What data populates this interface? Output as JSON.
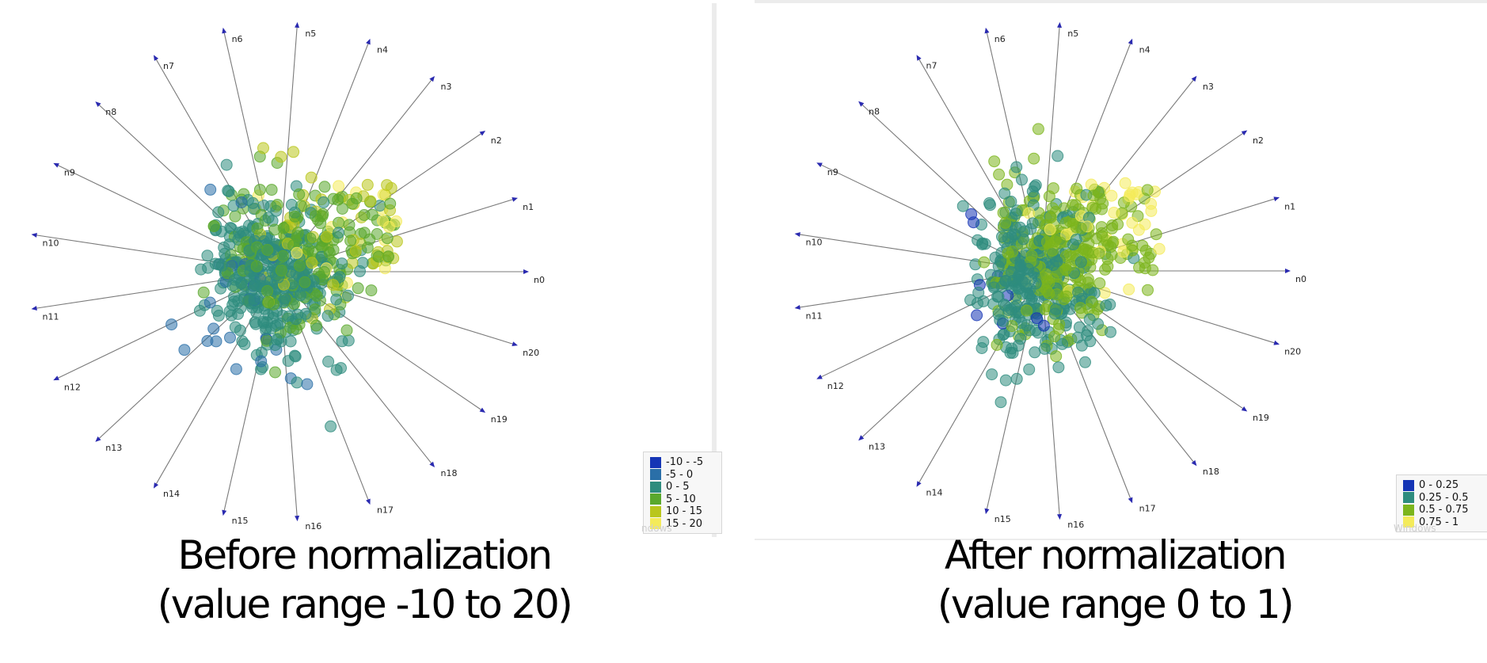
{
  "chart_data": [
    {
      "type": "scatter",
      "subtype": "radial-visualization",
      "title": "",
      "caption": [
        "Before normalization",
        "(value range -10 to 20)"
      ],
      "anchors": [
        "n0",
        "n1",
        "n2",
        "n3",
        "n4",
        "n5",
        "n6",
        "n7",
        "n8",
        "n9",
        "n10",
        "n11",
        "n12",
        "n13",
        "n14",
        "n15",
        "n16",
        "n17",
        "n18",
        "n19",
        "n20"
      ],
      "legend": {
        "placement": "bottom-right",
        "entries": [
          {
            "label": "-10 - -5",
            "color": "#1535b5"
          },
          {
            "label": "-5 - 0",
            "color": "#2a6fa8"
          },
          {
            "label": "0 - 5",
            "color": "#2e8c7e"
          },
          {
            "label": "5 - 10",
            "color": "#5aa82c"
          },
          {
            "label": "10 - 15",
            "color": "#b9c61c"
          },
          {
            "label": "15 - 20",
            "color": "#f4eb5a"
          }
        ]
      },
      "value_range": [
        -10,
        20
      ],
      "watermark": "ndows"
    },
    {
      "type": "scatter",
      "subtype": "radial-visualization",
      "title": "",
      "caption": [
        "After normalization",
        "(value range 0 to 1)"
      ],
      "anchors": [
        "n0",
        "n1",
        "n2",
        "n3",
        "n4",
        "n5",
        "n6",
        "n7",
        "n8",
        "n9",
        "n10",
        "n11",
        "n12",
        "n13",
        "n14",
        "n15",
        "n16",
        "n17",
        "n18",
        "n19",
        "n20"
      ],
      "legend": {
        "placement": "bottom-right",
        "entries": [
          {
            "label": "0 - 0.25",
            "color": "#1535b5"
          },
          {
            "label": "0.25 - 0.5",
            "color": "#2e8c7e"
          },
          {
            "label": "0.5 - 0.75",
            "color": "#7cb51c"
          },
          {
            "label": "0.75 - 1",
            "color": "#f4eb5a"
          }
        ]
      },
      "value_range": [
        0,
        1
      ],
      "watermark": "Windows"
    }
  ]
}
